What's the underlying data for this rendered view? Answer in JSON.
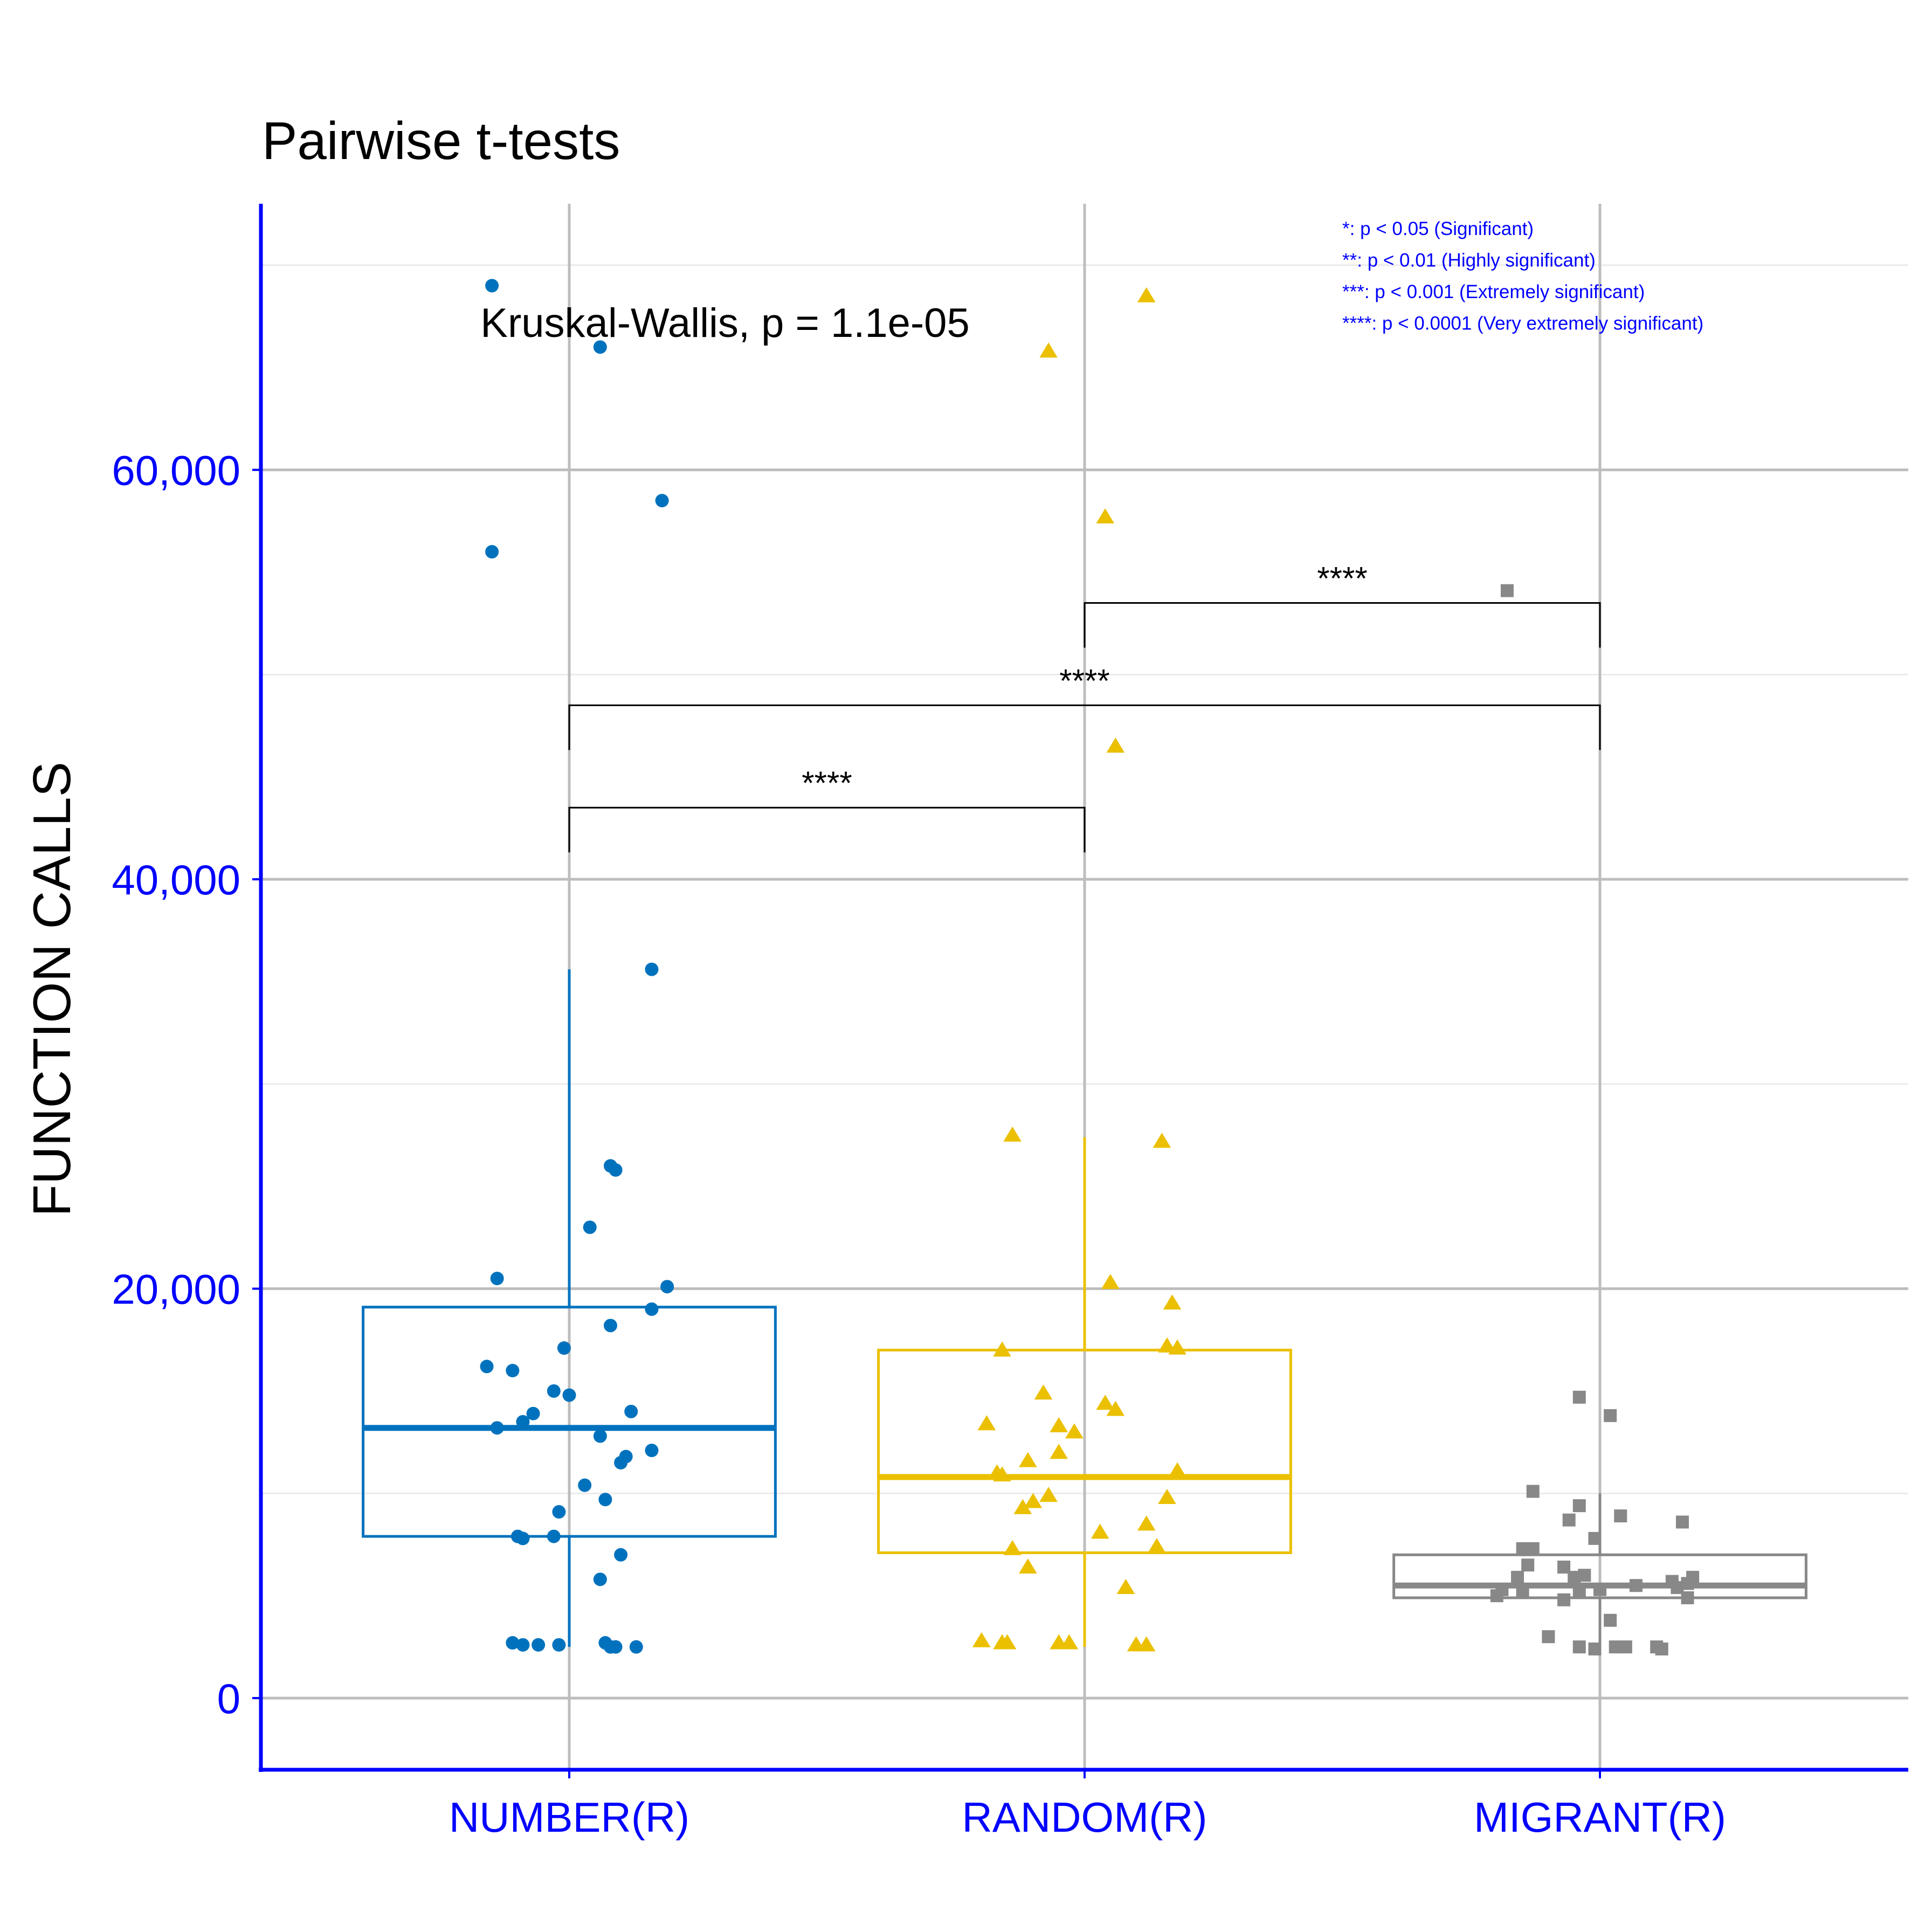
{
  "chart_data": {
    "type": "box",
    "title": "Pairwise t-tests",
    "ylabel": "FUNCTION CALLS",
    "xlabel": "",
    "ylim": [
      -3500,
      73000
    ],
    "yticks": [
      0,
      20000,
      40000,
      60000
    ],
    "ytick_labels": [
      "0",
      "20,000",
      "40,000",
      "60,000"
    ],
    "minor_yticks": [
      10000,
      30000,
      50000,
      70000
    ],
    "grid": true,
    "categories": [
      "NUMBER(R)",
      "RANDOM(R)",
      "MIGRANT(R)"
    ],
    "colors": [
      "#0072BD",
      "#EBC000",
      "#888888"
    ],
    "annotation": "Kruskal-Wallis, p = 1.1e-05",
    "legend_lines": [
      "*: p < 0.05 (Significant)",
      "**: p < 0.01 (Highly significant)",
      "***: p < 0.001 (Extremely significant)",
      "****: p < 0.0001 (Very extremely significant)"
    ],
    "brackets": [
      {
        "from": 0,
        "to": 1,
        "y": 43500,
        "label": "****"
      },
      {
        "from": 0,
        "to": 2,
        "y": 48500,
        "label": "****"
      },
      {
        "from": 1,
        "to": 2,
        "y": 53500,
        "label": "****"
      }
    ],
    "boxes": [
      {
        "q1": 7900,
        "median": 13200,
        "q3": 19100,
        "whisker_low": 2500,
        "whisker_high": 35600
      },
      {
        "q1": 7100,
        "median": 10800,
        "q3": 17000,
        "whisker_low": 2500,
        "whisker_high": 27400
      },
      {
        "q1": 4900,
        "median": 5500,
        "q3": 7000,
        "whisker_low": 2400,
        "whisker_high": 10000
      }
    ],
    "series": [
      {
        "name": "NUMBER(R)",
        "marker": "circle",
        "points": [
          [
            -0.15,
            69000
          ],
          [
            0.06,
            66000
          ],
          [
            0.18,
            58500
          ],
          [
            -0.15,
            56000
          ],
          [
            0.16,
            35600
          ],
          [
            0.08,
            26000
          ],
          [
            0.09,
            25800
          ],
          [
            0.04,
            23000
          ],
          [
            -0.14,
            20500
          ],
          [
            0.19,
            20100
          ],
          [
            0.16,
            19000
          ],
          [
            0.08,
            18200
          ],
          [
            -0.16,
            16200
          ],
          [
            -0.11,
            16000
          ],
          [
            -0.01,
            17100
          ],
          [
            -0.03,
            15000
          ],
          [
            0.0,
            14800
          ],
          [
            0.12,
            14000
          ],
          [
            -0.07,
            13900
          ],
          [
            -0.09,
            13500
          ],
          [
            -0.14,
            13200
          ],
          [
            0.06,
            12800
          ],
          [
            0.16,
            12100
          ],
          [
            0.11,
            11800
          ],
          [
            0.1,
            11500
          ],
          [
            0.03,
            10400
          ],
          [
            0.07,
            9700
          ],
          [
            -0.02,
            9100
          ],
          [
            -0.1,
            7900
          ],
          [
            -0.09,
            7800
          ],
          [
            -0.03,
            7900
          ],
          [
            0.1,
            7000
          ],
          [
            0.06,
            5800
          ],
          [
            -0.11,
            2700
          ],
          [
            -0.09,
            2600
          ],
          [
            -0.06,
            2600
          ],
          [
            -0.02,
            2600
          ],
          [
            0.07,
            2700
          ],
          [
            0.08,
            2500
          ],
          [
            0.09,
            2500
          ],
          [
            0.13,
            2500
          ]
        ]
      },
      {
        "name": "RANDOM(R)",
        "marker": "triangle",
        "points": [
          [
            0.12,
            68500
          ],
          [
            -0.07,
            65800
          ],
          [
            0.04,
            57700
          ],
          [
            0.06,
            46500
          ],
          [
            -0.14,
            27500
          ],
          [
            0.15,
            27200
          ],
          [
            0.05,
            20300
          ],
          [
            0.17,
            19300
          ],
          [
            0.16,
            17200
          ],
          [
            0.18,
            17100
          ],
          [
            -0.16,
            17000
          ],
          [
            -0.08,
            14900
          ],
          [
            0.04,
            14400
          ],
          [
            0.06,
            14100
          ],
          [
            -0.19,
            13400
          ],
          [
            -0.05,
            13300
          ],
          [
            -0.02,
            13000
          ],
          [
            -0.05,
            12000
          ],
          [
            -0.11,
            11600
          ],
          [
            -0.17,
            11000
          ],
          [
            -0.16,
            10900
          ],
          [
            0.18,
            11100
          ],
          [
            -0.07,
            9900
          ],
          [
            -0.1,
            9600
          ],
          [
            -0.12,
            9300
          ],
          [
            0.16,
            9800
          ],
          [
            0.12,
            8500
          ],
          [
            0.03,
            8100
          ],
          [
            0.14,
            7400
          ],
          [
            -0.14,
            7300
          ],
          [
            -0.11,
            6400
          ],
          [
            0.08,
            5400
          ],
          [
            -0.2,
            2800
          ],
          [
            -0.16,
            2700
          ],
          [
            -0.15,
            2700
          ],
          [
            -0.05,
            2700
          ],
          [
            -0.03,
            2700
          ],
          [
            0.1,
            2600
          ],
          [
            0.12,
            2600
          ]
        ]
      },
      {
        "name": "MIGRANT(R)",
        "marker": "square",
        "points": [
          [
            -0.18,
            54100
          ],
          [
            -0.04,
            14700
          ],
          [
            0.02,
            13800
          ],
          [
            -0.13,
            10100
          ],
          [
            -0.04,
            9400
          ],
          [
            0.04,
            8900
          ],
          [
            -0.06,
            8700
          ],
          [
            0.16,
            8600
          ],
          [
            -0.01,
            7800
          ],
          [
            -0.15,
            7300
          ],
          [
            -0.13,
            7300
          ],
          [
            -0.14,
            6500
          ],
          [
            -0.07,
            6400
          ],
          [
            -0.03,
            6000
          ],
          [
            -0.05,
            5900
          ],
          [
            -0.16,
            5900
          ],
          [
            0.18,
            5900
          ],
          [
            0.14,
            5700
          ],
          [
            0.07,
            5500
          ],
          [
            0.17,
            5600
          ],
          [
            -0.19,
            5300
          ],
          [
            -0.15,
            5200
          ],
          [
            -0.04,
            5200
          ],
          [
            0.0,
            5300
          ],
          [
            0.15,
            5400
          ],
          [
            -0.2,
            5000
          ],
          [
            -0.07,
            4800
          ],
          [
            0.17,
            4900
          ],
          [
            0.02,
            3800
          ],
          [
            -0.1,
            3000
          ],
          [
            -0.04,
            2500
          ],
          [
            -0.01,
            2400
          ],
          [
            0.03,
            2500
          ],
          [
            0.05,
            2500
          ],
          [
            0.11,
            2500
          ],
          [
            0.12,
            2400
          ]
        ]
      }
    ]
  }
}
